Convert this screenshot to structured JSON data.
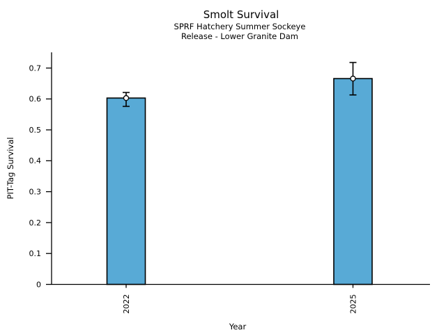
{
  "chart_data": {
    "type": "bar",
    "title": "Smolt Survival",
    "subtitle": [
      "SPRF Hatchery Summer Sockeye",
      "Release - Lower Granite Dam"
    ],
    "categories": [
      "2022",
      "2025"
    ],
    "values": [
      0.603,
      0.666
    ],
    "error_bars": {
      "low": [
        0.576,
        0.613
      ],
      "high": [
        0.621,
        0.718
      ]
    },
    "xlabel": "Year",
    "ylabel": "PIT-Tag Survival",
    "ylim": [
      0,
      0.75
    ],
    "yticks": [
      0,
      0.1,
      0.2,
      0.3,
      0.4,
      0.5,
      0.6,
      0.7
    ],
    "ytick_labels": [
      "0",
      "0.1",
      "0.2",
      "0.3",
      "0.4",
      "0.5",
      "0.6",
      "0.7"
    ],
    "xtick_rotation": 90,
    "grid": false,
    "legend": null,
    "bar_color": "#58AAD6",
    "bar_edge_color": "#000000",
    "error_color": "#000000",
    "marker": "open-circle",
    "marker_fill": "#ffffff"
  }
}
